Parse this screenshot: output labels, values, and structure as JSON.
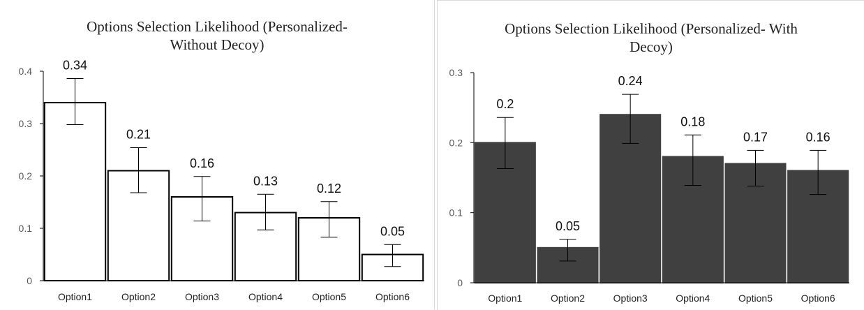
{
  "chart_data": [
    {
      "type": "bar",
      "title": "Options Selection Likelihood (Personalized- Without Decoy)",
      "title_lines": [
        "Options Selection Likelihood (Personalized-",
        "Without Decoy)"
      ],
      "categories": [
        "Option1",
        "Option2",
        "Option3",
        "Option4",
        "Option5",
        "Option6"
      ],
      "values": [
        0.34,
        0.21,
        0.16,
        0.13,
        0.12,
        0.05
      ],
      "data_labels": [
        "0.34",
        "0.21",
        "0.16",
        "0.13",
        "0.12",
        "0.05"
      ],
      "error_low": [
        0.298,
        0.168,
        0.114,
        0.097,
        0.083,
        0.027
      ],
      "error_high": [
        0.386,
        0.254,
        0.199,
        0.165,
        0.151,
        0.069
      ],
      "ylim": [
        0,
        0.4
      ],
      "yticks": [
        "0",
        "0.1",
        "0.2",
        "0.3",
        "0.4"
      ],
      "bar_fill": "#ffffff",
      "bar_stroke": "#000000",
      "xlabel": "",
      "ylabel": "",
      "grid": false
    },
    {
      "type": "bar",
      "title": "Options Selection Likelihood (Personalized- With Decoy)",
      "title_lines": [
        "Options Selection Likelihood (Personalized- With",
        "Decoy)"
      ],
      "categories": [
        "Option1",
        "Option2",
        "Option3",
        "Option4",
        "Option5",
        "Option6"
      ],
      "values": [
        0.2,
        0.05,
        0.24,
        0.18,
        0.17,
        0.16
      ],
      "data_labels": [
        "0.2",
        "0.05",
        "0.24",
        "0.18",
        "0.17",
        "0.16"
      ],
      "error_low": [
        0.163,
        0.031,
        0.199,
        0.139,
        0.138,
        0.126
      ],
      "error_high": [
        0.236,
        0.062,
        0.269,
        0.211,
        0.189,
        0.189
      ],
      "ylim": [
        0,
        0.3
      ],
      "yticks": [
        "0",
        "0.1",
        "0.2",
        "0.3"
      ],
      "bar_fill": "#404040",
      "bar_stroke": "#404040",
      "xlabel": "",
      "ylabel": "",
      "grid": false
    }
  ]
}
